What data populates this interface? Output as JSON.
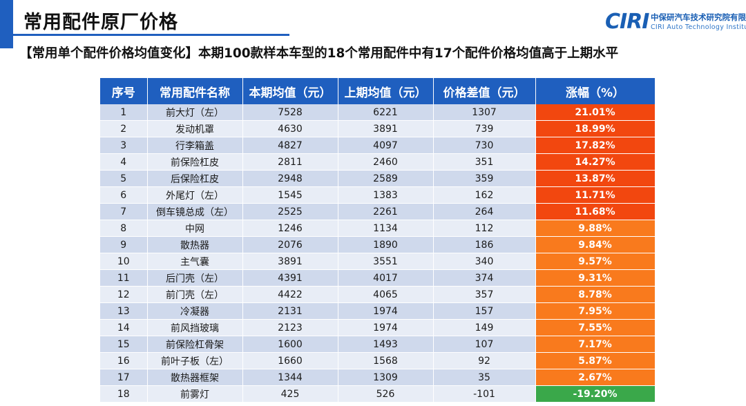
{
  "page": {
    "title": "常用配件原厂价格",
    "subtitle": "【常用单个配件价格均值变化】本期100款样本车型的18个常用配件中有17个配件价格均值高于上期水平"
  },
  "logo": {
    "mark": "CIRI",
    "cn": "中保研汽车技术研究院有限公司",
    "en": "CIRI Auto Technology Institute"
  },
  "table": {
    "headers": [
      "序号",
      "常用配件名称",
      "本期均值（元）",
      "上期均值（元）",
      "价格差值（元）",
      "涨幅（%）"
    ],
    "rows": [
      {
        "no": "1",
        "name": "前大灯（左）",
        "current": "7528",
        "previous": "6221",
        "diff": "1307",
        "pct": "21.01%",
        "level": "high"
      },
      {
        "no": "2",
        "name": "发动机罩",
        "current": "4630",
        "previous": "3891",
        "diff": "739",
        "pct": "18.99%",
        "level": "high"
      },
      {
        "no": "3",
        "name": "行李箱盖",
        "current": "4827",
        "previous": "4097",
        "diff": "730",
        "pct": "17.82%",
        "level": "high"
      },
      {
        "no": "4",
        "name": "前保险杠皮",
        "current": "2811",
        "previous": "2460",
        "diff": "351",
        "pct": "14.27%",
        "level": "high"
      },
      {
        "no": "5",
        "name": "后保险杠皮",
        "current": "2948",
        "previous": "2589",
        "diff": "359",
        "pct": "13.87%",
        "level": "high"
      },
      {
        "no": "6",
        "name": "外尾灯（左）",
        "current": "1545",
        "previous": "1383",
        "diff": "162",
        "pct": "11.71%",
        "level": "high"
      },
      {
        "no": "7",
        "name": "倒车镜总成（左）",
        "current": "2525",
        "previous": "2261",
        "diff": "264",
        "pct": "11.68%",
        "level": "high"
      },
      {
        "no": "8",
        "name": "中网",
        "current": "1246",
        "previous": "1134",
        "diff": "112",
        "pct": "9.88%",
        "level": "mid"
      },
      {
        "no": "9",
        "name": "散热器",
        "current": "2076",
        "previous": "1890",
        "diff": "186",
        "pct": "9.84%",
        "level": "mid"
      },
      {
        "no": "10",
        "name": "主气囊",
        "current": "3891",
        "previous": "3551",
        "diff": "340",
        "pct": "9.57%",
        "level": "mid"
      },
      {
        "no": "11",
        "name": "后门壳（左）",
        "current": "4391",
        "previous": "4017",
        "diff": "374",
        "pct": "9.31%",
        "level": "mid"
      },
      {
        "no": "12",
        "name": "前门壳（左）",
        "current": "4422",
        "previous": "4065",
        "diff": "357",
        "pct": "8.78%",
        "level": "mid"
      },
      {
        "no": "13",
        "name": "冷凝器",
        "current": "2131",
        "previous": "1974",
        "diff": "157",
        "pct": "7.95%",
        "level": "mid"
      },
      {
        "no": "14",
        "name": "前风挡玻璃",
        "current": "2123",
        "previous": "1974",
        "diff": "149",
        "pct": "7.55%",
        "level": "mid"
      },
      {
        "no": "15",
        "name": "前保险杠骨架",
        "current": "1600",
        "previous": "1493",
        "diff": "107",
        "pct": "7.17%",
        "level": "mid"
      },
      {
        "no": "16",
        "name": "前叶子板（左）",
        "current": "1660",
        "previous": "1568",
        "diff": "92",
        "pct": "5.87%",
        "level": "mid"
      },
      {
        "no": "17",
        "name": "散热器框架",
        "current": "1344",
        "previous": "1309",
        "diff": "35",
        "pct": "2.67%",
        "level": "mid"
      },
      {
        "no": "18",
        "name": "前雾灯",
        "current": "425",
        "previous": "526",
        "diff": "-101",
        "pct": "-19.20%",
        "level": "neg"
      }
    ]
  },
  "colors": {
    "accent": "#1f5fbf",
    "pct_high": "#f2470f",
    "pct_mid": "#f97a1d",
    "pct_neg": "#3aa84a"
  }
}
